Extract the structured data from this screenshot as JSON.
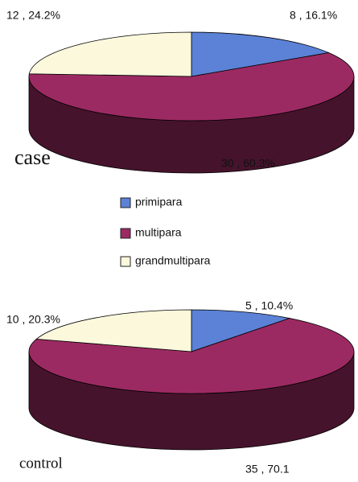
{
  "chart_data": [
    {
      "type": "pie",
      "title": "case",
      "categories": [
        "primipara",
        "multipara",
        "grandmultipara"
      ],
      "colors": [
        "#5b82d6",
        "#9c2a62",
        "#fbf8dc"
      ],
      "values": [
        16.1,
        60.3,
        24.2
      ],
      "value_labels": [
        "8 , 16.1%",
        "30 , 60.3%",
        "12 , 24.2%"
      ],
      "legend": true
    },
    {
      "type": "pie",
      "title": "control",
      "categories": [
        "primipara",
        "multipara",
        "grandmultipara"
      ],
      "colors": [
        "#5b82d6",
        "#9c2a62",
        "#fbf8dc"
      ],
      "values": [
        10.4,
        70.1,
        20.3
      ],
      "value_labels": [
        "5 , 10.4%",
        "35 , 70.1",
        "10 , 20.3%"
      ],
      "legend": false
    }
  ]
}
